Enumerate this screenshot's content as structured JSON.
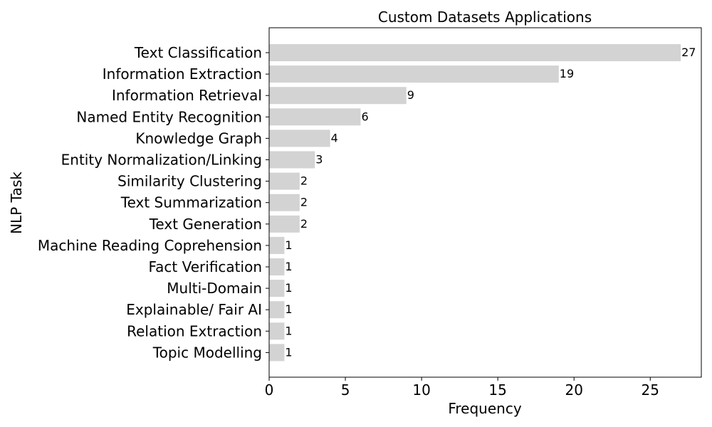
{
  "chart_data": {
    "type": "bar",
    "orientation": "horizontal",
    "title": "Custom Datasets Applications",
    "xlabel": "Frequency",
    "ylabel": "NLP Task",
    "xlim": [
      0,
      28.35
    ],
    "x_ticks": [
      0,
      5,
      10,
      15,
      20,
      25
    ],
    "grid": false,
    "bar_color": "#d3d3d3",
    "categories": [
      "Text Classification",
      "Information Extraction",
      "Information Retrieval",
      "Named Entity Recognition",
      "Knowledge Graph",
      "Entity Normalization/Linking",
      "Similarity Clustering",
      "Text Summarization",
      "Text Generation",
      "Machine Reading Coprehension",
      "Fact Verification",
      "Multi-Domain",
      "Explainable/ Fair AI",
      "Relation Extraction",
      "Topic Modelling"
    ],
    "values": [
      27,
      19,
      9,
      6,
      4,
      3,
      2,
      2,
      2,
      1,
      1,
      1,
      1,
      1,
      1
    ]
  }
}
